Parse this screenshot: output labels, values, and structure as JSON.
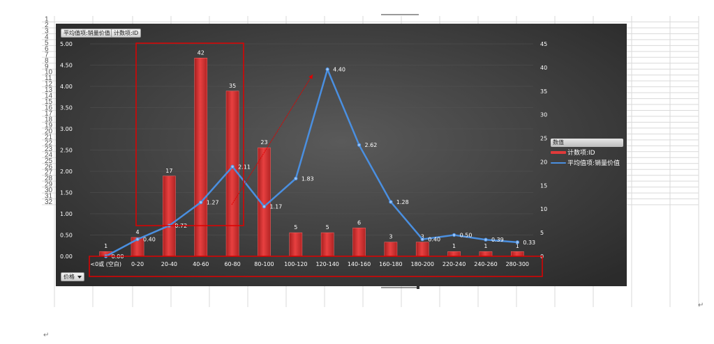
{
  "sheet": {
    "row_numbers": [
      "1",
      "2",
      "3",
      "4",
      "5",
      "6",
      "7",
      "8",
      "9",
      "10",
      "11",
      "12",
      "13",
      "14",
      "15",
      "16",
      "17",
      "18",
      "19",
      "20",
      "21",
      "22",
      "23",
      "24",
      "25",
      "26",
      "27",
      "28",
      "29",
      "30",
      "31",
      "32"
    ],
    "paragraph_mark": "↵"
  },
  "pivot": {
    "value_buttons": [
      "平均值项:销量价值",
      "计数项:ID"
    ],
    "axis_field_button": "价格",
    "dropdown_icon": "chevron-down-icon"
  },
  "legend": {
    "title": "数值",
    "items": [
      {
        "label": "计数项:ID",
        "color": "#e03a3a"
      },
      {
        "label": "平均值项:销量价值",
        "color": "#4a8fe0"
      }
    ]
  },
  "colors": {
    "bar": "#d93030",
    "line": "#4a8fe0",
    "highlight": "#e00000",
    "plot_bg": "#3a3a3a"
  },
  "chart_data": {
    "type": "bar",
    "categories": [
      "<0或 (空白)",
      "0-20",
      "20-40",
      "40-60",
      "60-80",
      "80-100",
      "100-120",
      "120-140",
      "140-160",
      "160-180",
      "180-200",
      "220-240",
      "240-260",
      "280-300"
    ],
    "series": [
      {
        "name": "计数项:ID",
        "type": "bar",
        "axis": "secondary",
        "values": [
          1,
          4,
          17,
          42,
          35,
          23,
          5,
          5,
          6,
          3,
          3,
          1,
          1,
          1
        ],
        "data_labels": [
          "1",
          "4",
          "17",
          "42",
          "35",
          "23",
          "5",
          "5",
          "6",
          "3",
          "3",
          "1",
          "1",
          "1"
        ]
      },
      {
        "name": "平均值项:销量价值",
        "type": "line",
        "axis": "primary",
        "values": [
          0.0,
          0.4,
          0.72,
          1.27,
          2.11,
          1.17,
          1.83,
          4.4,
          2.62,
          1.28,
          0.4,
          0.5,
          0.39,
          0.33
        ],
        "data_labels": [
          "0.00",
          "0.40",
          "0.72",
          "1.27",
          "2.11",
          "1.17",
          "1.83",
          "4.40",
          "2.62",
          "1.28",
          "0.40",
          "0.50",
          "0.39",
          "0.33"
        ]
      }
    ],
    "y_primary": {
      "ylim": [
        0,
        5
      ],
      "ticks": [
        "0.00",
        "0.50",
        "1.00",
        "1.50",
        "2.00",
        "2.50",
        "3.00",
        "3.50",
        "4.00",
        "4.50",
        "5.00"
      ]
    },
    "y_secondary": {
      "ylim": [
        0,
        45
      ],
      "ticks": [
        "0",
        "5",
        "10",
        "15",
        "20",
        "25",
        "30",
        "35",
        "40",
        "45"
      ]
    },
    "legend_position": "right",
    "grid": true,
    "annotations": [
      "red highlight box around 20-40 through 60-80",
      "red highlight box around x-axis category labels",
      "red arrow pointing toward 120-140 peak"
    ]
  }
}
